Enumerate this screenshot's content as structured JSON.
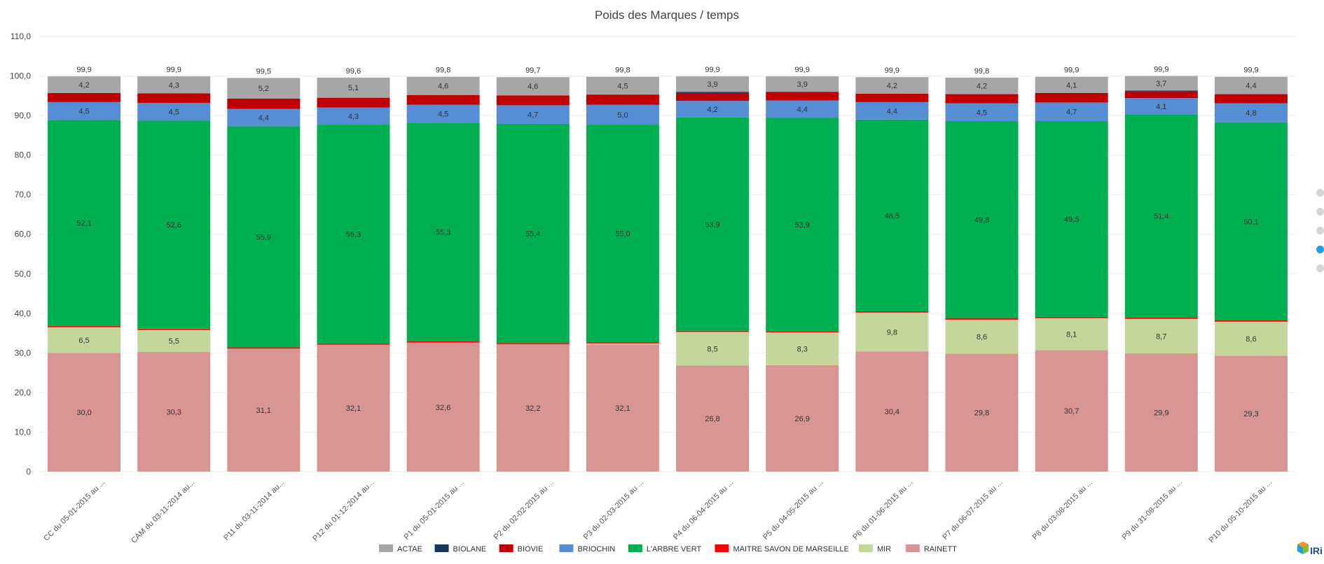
{
  "pager": {
    "dots": 5,
    "active_index": 3
  },
  "logo": {
    "text": "IRi"
  },
  "chart_data": {
    "type": "bar",
    "stacked": true,
    "title": "Poids des Marques / temps",
    "xlabel": "",
    "ylabel": "",
    "ylim": [
      0,
      110
    ],
    "yticks": [
      "0",
      "10,0",
      "20,0",
      "30,0",
      "40,0",
      "50,0",
      "60,0",
      "70,0",
      "80,0",
      "90,0",
      "100,0",
      "110,0"
    ],
    "grid": true,
    "legend_position": "bottom",
    "categories": [
      "CC du 05-01-2015 au ...",
      "CAM du 03-11-2014 au...",
      "P11 du 03-11-2014 au...",
      "P12 du 01-12-2014 au...",
      "P1 du 05-01-2015 au ...",
      "P2 du 02-02-2015 au ...",
      "P3 du 02-03-2015 au ...",
      "P4 du 06-04-2015 au ...",
      "P5 du 04-05-2015 au ...",
      "P6 du 01-06-2015 au ...",
      "P7 du 06-07-2015 au ...",
      "P8 du 03-08-2015 au ...",
      "P9 du 31-08-2015 au ...",
      "P10 du 05-10-2015 au ..."
    ],
    "totals": [
      "99,9",
      "99,9",
      "99,5",
      "99,6",
      "99,8",
      "99,7",
      "99,8",
      "99,9",
      "99,9",
      "99,9",
      "99,8",
      "99,9",
      "99,9",
      "99,9"
    ],
    "series": [
      {
        "name": "RAINETT",
        "color": "#d99594",
        "values": [
          30.0,
          30.3,
          31.1,
          32.1,
          32.6,
          32.2,
          32.1,
          26.8,
          26.9,
          30.4,
          29.8,
          30.7,
          29.9,
          29.3
        ],
        "labels": [
          "30,0",
          "30,3",
          "31,1",
          "32,1",
          "32,6",
          "32,2",
          "32,1",
          "26,8",
          "26,9",
          "30,4",
          "29,8",
          "30,7",
          "29,9",
          "29,3"
        ]
      },
      {
        "name": "MIR",
        "color": "#c4d79b",
        "values": [
          6.5,
          5.5,
          0,
          0,
          0,
          0,
          0.3,
          8.5,
          8.3,
          9.8,
          8.6,
          8.1,
          8.7,
          8.6
        ],
        "labels": [
          "6,5",
          "5,5",
          "",
          "",
          "",
          "",
          "",
          "8,5",
          "8,3",
          "9,8",
          "8,6",
          "8,1",
          "8,7",
          "8,6"
        ]
      },
      {
        "name": "MAITRE SAVON DE MARSEILLE",
        "color": "#ff0000",
        "values": [
          0.3,
          0.3,
          0.3,
          0.3,
          0.3,
          0.3,
          0.3,
          0.3,
          0.3,
          0.3,
          0.4,
          0.3,
          0.3,
          0.3
        ],
        "labels": [
          "",
          "",
          "",
          "",
          "",
          "",
          "",
          "",
          "",
          "",
          "",
          "",
          "",
          ""
        ]
      },
      {
        "name": "L'ARBRE VERT",
        "color": "#00b050",
        "values": [
          52.1,
          52.6,
          55.9,
          55.3,
          55.3,
          55.4,
          55.0,
          53.9,
          53.9,
          48.5,
          49.8,
          49.5,
          51.4,
          50.1
        ],
        "labels": [
          "52,1",
          "52,6",
          "55,9",
          "55,3",
          "55,3",
          "55,4",
          "55,0",
          "53,9",
          "53,9",
          "48,5",
          "49,8",
          "49,5",
          "51,4",
          "50,1"
        ]
      },
      {
        "name": "BRIOCHIN",
        "color": "#558ed5",
        "values": [
          4.5,
          4.5,
          4.4,
          4.3,
          4.5,
          4.7,
          5.0,
          4.2,
          4.4,
          4.4,
          4.5,
          4.7,
          4.1,
          4.8
        ],
        "labels": [
          "4,5",
          "4,5",
          "4,4",
          "4,3",
          "4,5",
          "4,7",
          "5,0",
          "4,2",
          "4,4",
          "4,4",
          "4,5",
          "4,7",
          "4,1",
          "4,8"
        ]
      },
      {
        "name": "BIOVIE",
        "color": "#c00000",
        "values": [
          2.3,
          2.4,
          2.6,
          2.5,
          2.5,
          2.5,
          2.6,
          2.0,
          2.2,
          2.1,
          2.3,
          2.2,
          1.7,
          2.3
        ],
        "labels": [
          "",
          "",
          "",
          "",
          "",
          "",
          "",
          "",
          "",
          "",
          "",
          "",
          "",
          ""
        ]
      },
      {
        "name": "BIOLANE",
        "color": "#17375e",
        "values": [
          0,
          0,
          0,
          0,
          0,
          0,
          0,
          0.3,
          0,
          0,
          0,
          0.2,
          0.2,
          0
        ],
        "labels": [
          "",
          "",
          "",
          "",
          "",
          "",
          "",
          "",
          "",
          "",
          "",
          "",
          "",
          ""
        ]
      },
      {
        "name": "ACTAE",
        "color": "#a6a6a6",
        "values": [
          4.2,
          4.3,
          5.2,
          5.1,
          4.6,
          4.6,
          4.5,
          3.9,
          3.9,
          4.2,
          4.2,
          4.1,
          3.7,
          4.4
        ],
        "labels": [
          "4,2",
          "4,3",
          "5,2",
          "5,1",
          "4,6",
          "4,6",
          "4,5",
          "3,9",
          "3,9",
          "4,2",
          "4,2",
          "4,1",
          "3,7",
          "4,4"
        ]
      }
    ],
    "legend": [
      "ACTAE",
      "BIOLANE",
      "BIOVIE",
      "BRIOCHIN",
      "L'ARBRE VERT",
      "MAITRE SAVON DE MARSEILLE",
      "MIR",
      "RAINETT"
    ]
  }
}
